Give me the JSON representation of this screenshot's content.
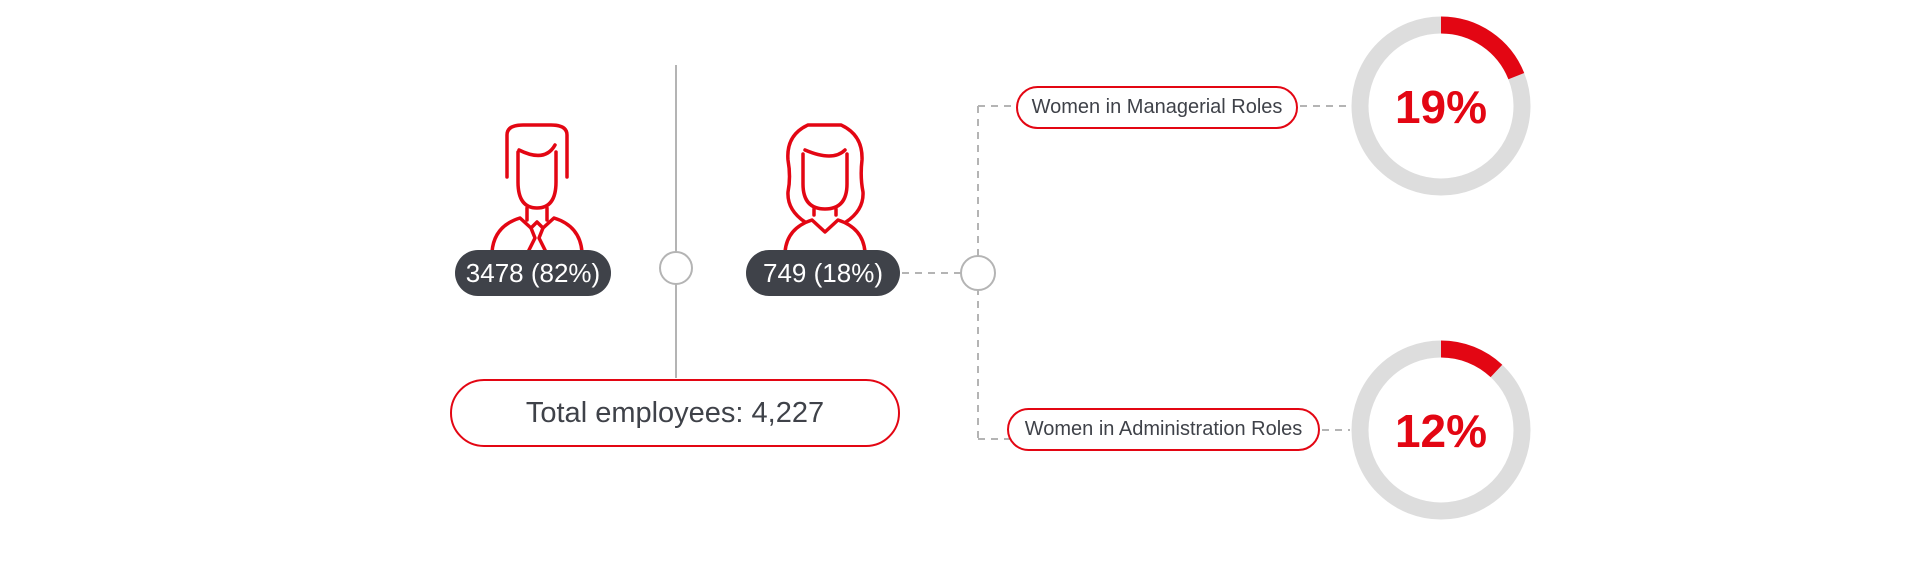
{
  "men": {
    "count_label": "3478 (82%)",
    "count": 3478,
    "percent": 82,
    "icon": "man-icon"
  },
  "women": {
    "count_label": "749 (18%)",
    "count": 749,
    "percent": 18,
    "icon": "woman-icon"
  },
  "total": {
    "label": "Total employees: 4,227",
    "value": 4227
  },
  "roles": [
    {
      "label": "Women in Managerial Roles",
      "percent_label": "19%",
      "percent": 19
    },
    {
      "label": "Women in Administration Roles",
      "percent_label": "12%",
      "percent": 12
    }
  ],
  "colors": {
    "accent": "#e30613",
    "dark": "#3f4249",
    "ring_track": "#dddddd",
    "connector": "#b4b4b4"
  }
}
